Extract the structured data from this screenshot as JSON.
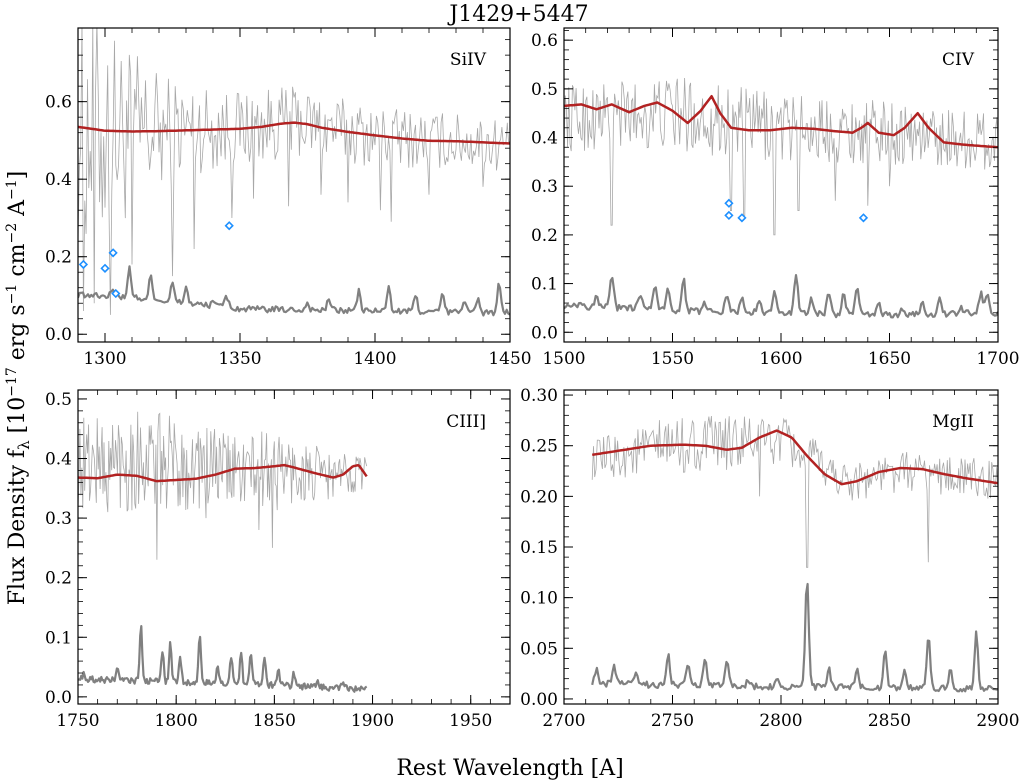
{
  "title": "J1429+5447",
  "xlabel": "Rest Wavelength [A]",
  "ylabel": "Flux Density f",
  "ylabel_sub": "λ",
  "ylabel_unit": " [10",
  "ylabel_exp1": "−17",
  "ylabel_unit2": " erg s",
  "ylabel_exp2": "−1",
  "ylabel_unit3": " cm",
  "ylabel_exp3": "−2",
  "ylabel_unit4": " A",
  "ylabel_exp4": "−1",
  "ylabel_close": "]",
  "colors": {
    "spectrum": "#a8a8a8",
    "error": "#808080",
    "model": "#b22222",
    "absorber": "#1e90ff",
    "axes": "#000000"
  },
  "chart_data": [
    {
      "type": "line",
      "label": "SiIV",
      "xlim": [
        1290,
        1450
      ],
      "ylim": [
        -0.02,
        0.79
      ],
      "xticks": [
        1300,
        1350,
        1400,
        1450
      ],
      "xtick_labels": [
        "1300",
        "1350",
        "1400",
        "1450"
      ],
      "yticks": [
        0.0,
        0.2,
        0.4,
        0.6
      ],
      "ytick_labels": [
        "0.0",
        "0.2",
        "0.4",
        "0.6"
      ],
      "series": [
        {
          "role": "model",
          "x": [
            1290,
            1300,
            1310,
            1320,
            1330,
            1340,
            1350,
            1358,
            1365,
            1370,
            1375,
            1380,
            1390,
            1400,
            1410,
            1420,
            1430,
            1440,
            1450
          ],
          "y": [
            0.535,
            0.525,
            0.523,
            0.524,
            0.526,
            0.528,
            0.53,
            0.535,
            0.543,
            0.546,
            0.542,
            0.533,
            0.522,
            0.513,
            0.505,
            0.499,
            0.498,
            0.495,
            0.492
          ]
        },
        {
          "role": "spectrum",
          "x_range": [
            1290,
            1450
          ],
          "points": 320,
          "baseline_x": [
            1290,
            1300,
            1310,
            1320,
            1330,
            1340,
            1350,
            1370,
            1400,
            1450
          ],
          "baseline_y": [
            0.53,
            0.52,
            0.52,
            0.52,
            0.53,
            0.53,
            0.53,
            0.55,
            0.51,
            0.49
          ],
          "noise_amplitude": [
            0.3,
            0.3,
            0.22,
            0.16,
            0.12,
            0.11,
            0.1,
            0.09,
            0.08,
            0.07
          ],
          "dips_x": [
            1292,
            1296,
            1302,
            1310,
            1325,
            1333,
            1347,
            1355,
            1368,
            1380,
            1390,
            1402,
            1406,
            1420,
            1440
          ],
          "dips_y": [
            0.06,
            0.08,
            0.05,
            0.18,
            0.15,
            0.22,
            0.3,
            0.35,
            0.33,
            0.36,
            0.34,
            0.32,
            0.29,
            0.36,
            0.38
          ]
        },
        {
          "role": "error",
          "x_range": [
            1290,
            1450
          ],
          "baseline_x": [
            1290,
            1310,
            1330,
            1350,
            1400,
            1450
          ],
          "baseline_y": [
            0.1,
            0.095,
            0.08,
            0.065,
            0.06,
            0.055
          ],
          "peaks_x": [
            1303,
            1309,
            1317,
            1325,
            1330,
            1340,
            1345,
            1375,
            1383,
            1394,
            1405,
            1415,
            1425,
            1433,
            1438,
            1446
          ],
          "peaks_y": [
            0.12,
            0.17,
            0.15,
            0.13,
            0.12,
            0.09,
            0.1,
            0.08,
            0.09,
            0.11,
            0.12,
            0.1,
            0.1,
            0.09,
            0.09,
            0.13
          ]
        }
      ],
      "absorbers": {
        "x": [
          1292,
          1300,
          1303,
          1304,
          1346
        ],
        "y": [
          0.18,
          0.17,
          0.21,
          0.105,
          0.28
        ]
      }
    },
    {
      "type": "line",
      "label": "CIV",
      "xlim": [
        1500,
        1700
      ],
      "ylim": [
        -0.02,
        0.625
      ],
      "xticks": [
        1500,
        1550,
        1600,
        1650,
        1700
      ],
      "xtick_labels": [
        "1500",
        "1550",
        "1600",
        "1650",
        "1700"
      ],
      "yticks": [
        0.0,
        0.1,
        0.2,
        0.3,
        0.4,
        0.5,
        0.6
      ],
      "ytick_labels": [
        "0.0",
        "0.1",
        "0.2",
        "0.3",
        "0.4",
        "0.5",
        "0.6"
      ],
      "series": [
        {
          "role": "model",
          "x": [
            1500,
            1508,
            1515,
            1522,
            1530,
            1537,
            1543,
            1550,
            1557,
            1563,
            1568,
            1572,
            1577,
            1585,
            1595,
            1605,
            1615,
            1625,
            1633,
            1637,
            1640,
            1645,
            1652,
            1657,
            1663,
            1668,
            1675,
            1685,
            1700
          ],
          "y": [
            0.465,
            0.468,
            0.458,
            0.468,
            0.452,
            0.465,
            0.472,
            0.455,
            0.43,
            0.455,
            0.485,
            0.45,
            0.42,
            0.415,
            0.415,
            0.42,
            0.418,
            0.413,
            0.41,
            0.42,
            0.43,
            0.41,
            0.405,
            0.42,
            0.45,
            0.42,
            0.39,
            0.385,
            0.38
          ]
        },
        {
          "role": "spectrum",
          "x_range": [
            1500,
            1700
          ],
          "points": 360,
          "baseline_x": [
            1500,
            1550,
            1600,
            1650,
            1700
          ],
          "baseline_y": [
            0.44,
            0.45,
            0.42,
            0.41,
            0.39
          ],
          "noise_amplitude": [
            0.07,
            0.08,
            0.07,
            0.065,
            0.06
          ],
          "dips_x": [
            1522,
            1577,
            1583,
            1597,
            1608,
            1625,
            1640,
            1650
          ],
          "dips_y": [
            0.22,
            0.25,
            0.24,
            0.2,
            0.25,
            0.27,
            0.26,
            0.3
          ]
        },
        {
          "role": "error",
          "x_range": [
            1500,
            1700
          ],
          "baseline_x": [
            1500,
            1550,
            1600,
            1650,
            1700
          ],
          "baseline_y": [
            0.055,
            0.045,
            0.04,
            0.035,
            0.04
          ],
          "peaks_x": [
            1507,
            1515,
            1522,
            1535,
            1542,
            1548,
            1555,
            1565,
            1575,
            1582,
            1590,
            1597,
            1607,
            1614,
            1622,
            1629,
            1635,
            1645,
            1656,
            1665,
            1673,
            1683,
            1692,
            1695
          ],
          "peaks_y": [
            0.06,
            0.08,
            0.12,
            0.08,
            0.1,
            0.09,
            0.11,
            0.06,
            0.08,
            0.07,
            0.06,
            0.09,
            0.12,
            0.07,
            0.08,
            0.08,
            0.09,
            0.06,
            0.05,
            0.06,
            0.07,
            0.05,
            0.08,
            0.08
          ]
        }
      ],
      "absorbers": {
        "x": [
          1576,
          1576,
          1582,
          1638
        ],
        "y": [
          0.265,
          0.24,
          0.235,
          0.235
        ]
      }
    },
    {
      "type": "line",
      "label": "CIII]",
      "xlim": [
        1750,
        1970
      ],
      "ylim": [
        -0.012,
        0.515
      ],
      "xticks": [
        1750,
        1800,
        1850,
        1900,
        1950
      ],
      "xtick_labels": [
        "1750",
        "1800",
        "1850",
        "1900",
        "1950"
      ],
      "yticks": [
        0.0,
        0.1,
        0.2,
        0.3,
        0.4,
        0.5
      ],
      "ytick_labels": [
        "0.0",
        "0.1",
        "0.2",
        "0.3",
        "0.4",
        "0.5"
      ],
      "series": [
        {
          "role": "model",
          "x": [
            1750,
            1760,
            1770,
            1780,
            1790,
            1800,
            1810,
            1820,
            1830,
            1840,
            1850,
            1855,
            1860,
            1870,
            1880,
            1885,
            1890,
            1893,
            1897
          ],
          "y": [
            0.368,
            0.367,
            0.373,
            0.371,
            0.362,
            0.364,
            0.366,
            0.373,
            0.383,
            0.384,
            0.387,
            0.389,
            0.385,
            0.376,
            0.368,
            0.373,
            0.387,
            0.389,
            0.37
          ]
        },
        {
          "role": "spectrum",
          "x_range": [
            1750,
            1897
          ],
          "points": 300,
          "baseline_x": [
            1750,
            1780,
            1800,
            1830,
            1850,
            1880,
            1897
          ],
          "baseline_y": [
            0.39,
            0.4,
            0.39,
            0.38,
            0.38,
            0.37,
            0.38
          ],
          "noise_amplitude": [
            0.08,
            0.09,
            0.08,
            0.06,
            0.07,
            0.04,
            0.03
          ],
          "dips_x": [
            1765,
            1790,
            1815,
            1842,
            1849,
            1870
          ],
          "dips_y": [
            0.31,
            0.23,
            0.3,
            0.28,
            0.25,
            0.33
          ]
        },
        {
          "role": "error",
          "x_range": [
            1750,
            1897
          ],
          "baseline_x": [
            1750,
            1800,
            1850,
            1897
          ],
          "baseline_y": [
            0.03,
            0.025,
            0.02,
            0.012
          ],
          "peaks_x": [
            1753,
            1770,
            1782,
            1793,
            1797,
            1802,
            1812,
            1821,
            1828,
            1833,
            1838,
            1845,
            1852,
            1860,
            1872,
            1885
          ],
          "peaks_y": [
            0.04,
            0.05,
            0.12,
            0.08,
            0.09,
            0.07,
            0.1,
            0.05,
            0.07,
            0.08,
            0.07,
            0.07,
            0.05,
            0.04,
            0.03,
            0.025
          ]
        }
      ],
      "absorbers": {
        "x": [],
        "y": []
      }
    },
    {
      "type": "line",
      "label": "MgII",
      "xlim": [
        2700,
        2900
      ],
      "ylim": [
        -0.005,
        0.305
      ],
      "xticks": [
        2700,
        2750,
        2800,
        2850,
        2900
      ],
      "xtick_labels": [
        "2700",
        "2750",
        "2800",
        "2850",
        "2900"
      ],
      "yticks": [
        0.0,
        0.05,
        0.1,
        0.15,
        0.2,
        0.25,
        0.3
      ],
      "ytick_labels": [
        "0.00",
        "0.05",
        "0.10",
        "0.15",
        "0.20",
        "0.25",
        "0.30"
      ],
      "series": [
        {
          "role": "model",
          "x": [
            2713,
            2725,
            2740,
            2755,
            2765,
            2775,
            2782,
            2790,
            2798,
            2805,
            2812,
            2820,
            2828,
            2835,
            2845,
            2855,
            2865,
            2875,
            2885,
            2900
          ],
          "y": [
            0.241,
            0.245,
            0.25,
            0.251,
            0.25,
            0.246,
            0.248,
            0.258,
            0.265,
            0.258,
            0.24,
            0.222,
            0.212,
            0.215,
            0.224,
            0.228,
            0.227,
            0.222,
            0.218,
            0.213
          ]
        },
        {
          "role": "spectrum",
          "x_range": [
            2713,
            2900
          ],
          "points": 320,
          "baseline_x": [
            2713,
            2750,
            2800,
            2830,
            2860,
            2900
          ],
          "baseline_y": [
            0.235,
            0.25,
            0.255,
            0.215,
            0.225,
            0.215
          ],
          "noise_amplitude": [
            0.02,
            0.03,
            0.025,
            0.02,
            0.02,
            0.02
          ],
          "dips_x": [
            2790,
            2812,
            2868
          ],
          "dips_y": [
            0.2,
            0.13,
            0.135
          ]
        },
        {
          "role": "error",
          "x_range": [
            2713,
            2900
          ],
          "baseline_x": [
            2713,
            2800,
            2900
          ],
          "baseline_y": [
            0.015,
            0.012,
            0.01
          ],
          "peaks_x": [
            2715,
            2723,
            2733,
            2748,
            2757,
            2765,
            2775,
            2785,
            2798,
            2812,
            2822,
            2835,
            2848,
            2857,
            2868,
            2878,
            2890
          ],
          "peaks_y": [
            0.03,
            0.035,
            0.025,
            0.045,
            0.035,
            0.04,
            0.04,
            0.02,
            0.02,
            0.12,
            0.03,
            0.03,
            0.05,
            0.03,
            0.06,
            0.03,
            0.065
          ]
        }
      ],
      "absorbers": {
        "x": [],
        "y": []
      }
    }
  ]
}
